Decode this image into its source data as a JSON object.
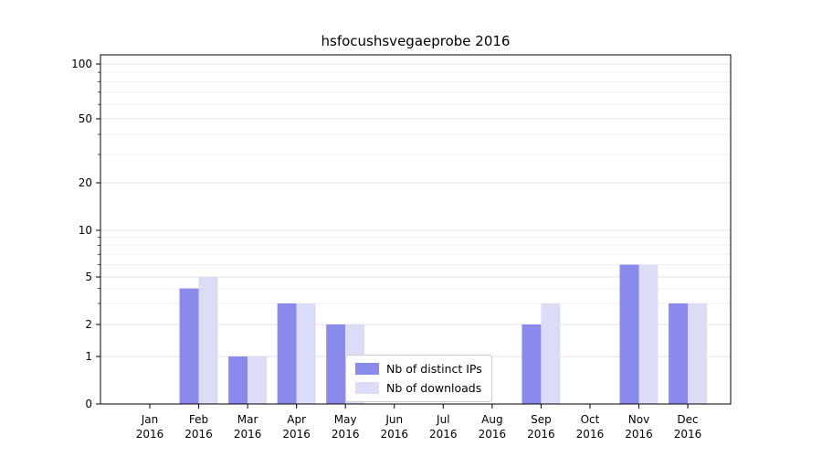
{
  "chart_data": {
    "type": "bar",
    "title": "hsfocushsvegaeprobe 2016",
    "scale": "symlog",
    "grid": true,
    "legend_position": "lower center",
    "ylim": [
      0,
      110
    ],
    "yticks": [
      0,
      1,
      2,
      5,
      10,
      20,
      50,
      100
    ],
    "minor_yticks": [
      3,
      4,
      6,
      7,
      8,
      9,
      30,
      40,
      60,
      70,
      80,
      90
    ],
    "categories": [
      {
        "label": "Jan",
        "sub": "2016"
      },
      {
        "label": "Feb",
        "sub": "2016"
      },
      {
        "label": "Mar",
        "sub": "2016"
      },
      {
        "label": "Apr",
        "sub": "2016"
      },
      {
        "label": "May",
        "sub": "2016"
      },
      {
        "label": "Jun",
        "sub": "2016"
      },
      {
        "label": "Jul",
        "sub": "2016"
      },
      {
        "label": "Aug",
        "sub": "2016"
      },
      {
        "label": "Sep",
        "sub": "2016"
      },
      {
        "label": "Oct",
        "sub": "2016"
      },
      {
        "label": "Nov",
        "sub": "2016"
      },
      {
        "label": "Dec",
        "sub": "2016"
      }
    ],
    "series": [
      {
        "name": "Nb of distinct IPs",
        "color": "#8a8aec",
        "values": [
          0,
          4,
          1,
          3,
          2,
          0,
          0,
          0,
          2,
          0,
          6,
          3
        ]
      },
      {
        "name": "Nb of downloads",
        "color": "#dcdcf7",
        "values": [
          0,
          5,
          1,
          3,
          2,
          0,
          0,
          0,
          3,
          0,
          6,
          3
        ]
      }
    ]
  }
}
